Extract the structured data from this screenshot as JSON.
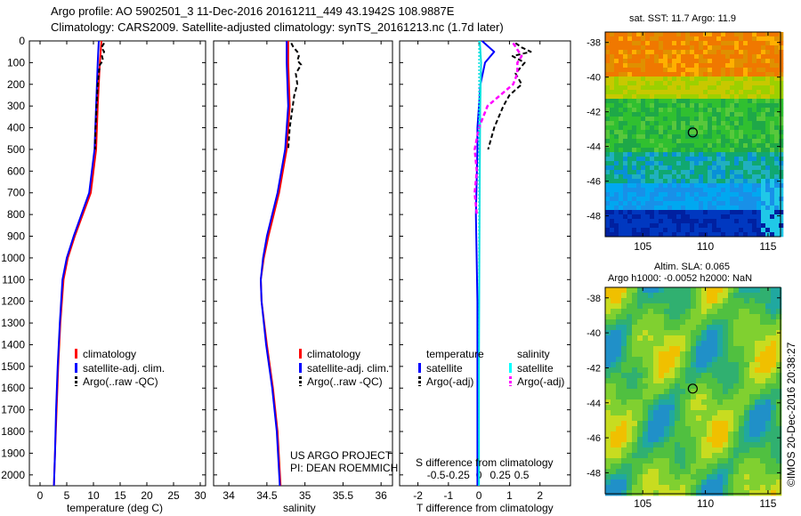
{
  "header": {
    "line1": "Argo profile: AO 5902501_3 11-Dec-2016 20161211_449 43.1942S 108.9887E",
    "line2": "Climatology: CARS2009. Satellite-adjusted climatology: synTS_20161213.nc (1.7d later)"
  },
  "footer": {
    "stamp": "©IMOS 20-Dec-2016 20:38:27"
  },
  "chart_data": [
    {
      "type": "line",
      "panel": "temperature",
      "xlabel": "temperature (deg C)",
      "xlim": [
        -2,
        31
      ],
      "xticks": [
        "0",
        "5",
        "10",
        "15",
        "20",
        "25",
        "30"
      ],
      "ylim": [
        0,
        2050
      ],
      "yticks": [
        "0",
        "100",
        "200",
        "300",
        "400",
        "500",
        "600",
        "700",
        "800",
        "900",
        "1000",
        "1100",
        "1200",
        "1300",
        "1400",
        "1500",
        "1600",
        "1700",
        "1800",
        "1900",
        "2000"
      ],
      "legend": [
        "climatology",
        "satellite-adj. clim.",
        "Argo(..raw -QC)"
      ],
      "colors": {
        "climatology": "#ff0000",
        "satellite": "#0000ff",
        "argo": "#000000"
      },
      "series": [
        {
          "name": "climatology",
          "depth": [
            0,
            100,
            300,
            500,
            700,
            900,
            1000,
            1100,
            1300,
            1500,
            1700,
            1900,
            2050
          ],
          "values": [
            11.5,
            11.2,
            10.8,
            10.5,
            9.5,
            6.5,
            5.2,
            4.4,
            3.8,
            3.4,
            3.1,
            2.8,
            2.6
          ]
        },
        {
          "name": "satellite-adj. clim.",
          "depth": [
            0,
            100,
            300,
            500,
            700,
            900,
            1000,
            1100,
            1300,
            1500,
            1700,
            1900,
            2050
          ],
          "values": [
            11.0,
            10.8,
            10.5,
            10.2,
            9.2,
            6.3,
            5.0,
            4.2,
            3.7,
            3.3,
            3.0,
            2.8,
            2.6
          ]
        },
        {
          "name": "Argo(..raw -QC)",
          "depth": [
            10,
            30,
            50,
            70,
            90,
            110,
            150,
            200,
            300,
            400,
            500
          ],
          "values": [
            12.0,
            11.5,
            12.0,
            11.6,
            11.8,
            11.2,
            11.0,
            10.8,
            10.6,
            10.4,
            10.3
          ]
        }
      ]
    },
    {
      "type": "line",
      "panel": "salinity",
      "xlabel": "salinity",
      "xlim": [
        33.8,
        36.15
      ],
      "xticks": [
        "34",
        "34.5",
        "35",
        "35.5",
        "36"
      ],
      "ylim": [
        0,
        2050
      ],
      "legend": [
        "climatology",
        "satellite-adj. clim.",
        "Argo(..raw -QC)"
      ],
      "note_line1": "US ARGO PROJECT",
      "note_line2": "PI: DEAN ROEMMICH",
      "series": [
        {
          "name": "climatology",
          "depth": [
            0,
            100,
            300,
            500,
            700,
            900,
            1000,
            1100,
            1200,
            1400,
            1600,
            1800,
            2050
          ],
          "values": [
            34.78,
            34.78,
            34.8,
            34.76,
            34.66,
            34.52,
            34.46,
            34.42,
            34.43,
            34.5,
            34.58,
            34.64,
            34.68
          ]
        },
        {
          "name": "satellite-adj. clim.",
          "depth": [
            0,
            100,
            300,
            500,
            700,
            900,
            1000,
            1100,
            1200,
            1400,
            1600,
            1800,
            2050
          ],
          "values": [
            34.76,
            34.76,
            34.78,
            34.74,
            34.64,
            34.5,
            34.45,
            34.42,
            34.43,
            34.49,
            34.57,
            34.63,
            34.67
          ]
        },
        {
          "name": "Argo(..raw -QC)",
          "depth": [
            10,
            30,
            50,
            70,
            90,
            110,
            150,
            200,
            250,
            300,
            400,
            500
          ],
          "values": [
            34.82,
            34.85,
            34.9,
            34.92,
            34.9,
            34.95,
            34.88,
            34.9,
            34.86,
            34.84,
            34.8,
            34.78
          ]
        }
      ]
    },
    {
      "type": "line",
      "panel": "differences",
      "xlabel": "T difference from climatology",
      "xlabel_top": "S difference from climatology",
      "xlim": [
        -2.6,
        3.0
      ],
      "xticks": [
        "-2",
        "-1",
        "0",
        "1",
        "2"
      ],
      "xticks_top": [
        "-0.5",
        "-0.25",
        "0",
        "0.25",
        "0.5"
      ],
      "ylim": [
        0,
        2050
      ],
      "legend_left_title": "temperature",
      "legend_right_title": "salinity",
      "legend_left": [
        "satellite",
        "Argo(-adj)"
      ],
      "legend_right": [
        "satellite",
        "Argo(-adj)"
      ],
      "series": [
        {
          "name": "temperature satellite",
          "depth": [
            0,
            50,
            100,
            200,
            300,
            400,
            500,
            800,
            1200,
            1600,
            2050
          ],
          "values": [
            0.1,
            0.5,
            0.2,
            0.05,
            0,
            -0.05,
            -0.05,
            -0.1,
            -0.05,
            -0.05,
            -0.05
          ]
        },
        {
          "name": "temperature Argo(-adj)",
          "depth": [
            10,
            30,
            50,
            70,
            100,
            150,
            200,
            250,
            300,
            400,
            500
          ],
          "values": [
            1.2,
            1.4,
            1.7,
            1.1,
            1.5,
            1.2,
            1.4,
            1.0,
            0.8,
            0.5,
            0.3
          ]
        },
        {
          "name": "salinity satellite",
          "depth": [
            0,
            100,
            300,
            600,
            1000,
            1500,
            2050
          ],
          "values": [
            0.02,
            0.05,
            0.03,
            0.02,
            0.01,
            0.0,
            0.0
          ]
        },
        {
          "name": "salinity Argo(-adj)",
          "depth": [
            10,
            40,
            70,
            100,
            150,
            200,
            300,
            400,
            500,
            600,
            700,
            800
          ],
          "values": [
            0.8,
            0.9,
            1.0,
            0.9,
            0.9,
            0.8,
            0.2,
            0.0,
            -0.1,
            -0.05,
            -0.1,
            -0.05
          ]
        }
      ]
    },
    {
      "type": "heatmap",
      "panel": "sst-map",
      "title": "sat. SST: 11.7  Argo: 11.9",
      "xlim": [
        102,
        116
      ],
      "ylim": [
        -49.2,
        -37.4
      ],
      "xticks": [
        "105",
        "110",
        "115"
      ],
      "yticks": [
        "-38",
        "-40",
        "-42",
        "-44",
        "-46",
        "-48"
      ],
      "marker": {
        "lon": 108.99,
        "lat": -43.19
      }
    },
    {
      "type": "heatmap",
      "panel": "sla-map",
      "title_line1": "Altim. SLA: 0.065",
      "title_line2": "Argo h1000: -0.0052  h2000: NaN",
      "xlim": [
        102,
        116
      ],
      "ylim": [
        -49.2,
        -37.4
      ],
      "xticks": [
        "105",
        "110",
        "115"
      ],
      "yticks": [
        "-38",
        "-40",
        "-42",
        "-44",
        "-46",
        "-48"
      ],
      "marker": {
        "lon": 108.99,
        "lat": -43.19
      }
    }
  ]
}
